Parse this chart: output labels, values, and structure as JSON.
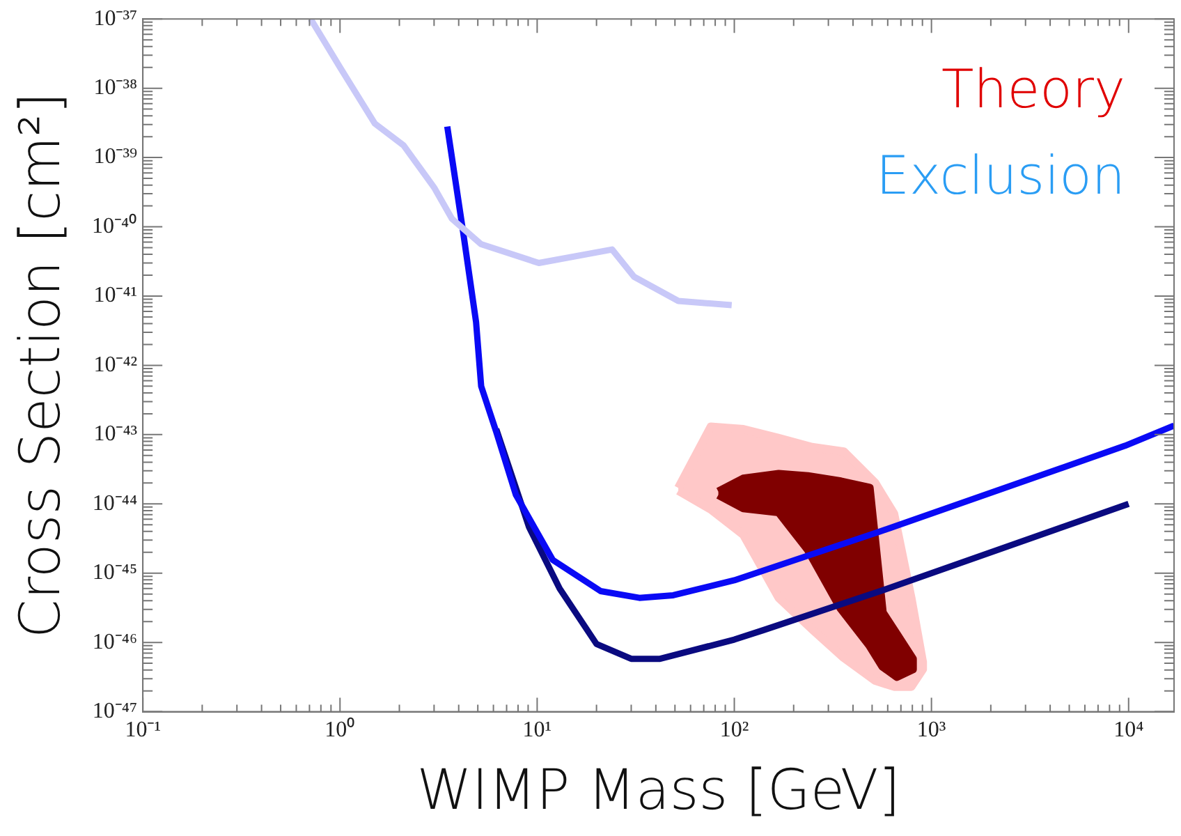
{
  "chart_data": {
    "type": "line",
    "xlabel": "WIMP Mass [GeV]",
    "ylabel": "Cross Section [cm²]",
    "log": "xy",
    "grid": false,
    "legend": false,
    "marker": "none",
    "line_style": "solid",
    "xlim": [
      0.1,
      17000
    ],
    "ylim": [
      1e-47,
      1e-37
    ],
    "xticks": [
      {
        "value": 0.1,
        "label": "10⁻¹"
      },
      {
        "value": 0.2,
        "label": null
      },
      {
        "value": 0.3,
        "label": null
      },
      {
        "value": 0.4,
        "label": null
      },
      {
        "value": 0.5,
        "label": null
      },
      {
        "value": 0.6,
        "label": null
      },
      {
        "value": 0.7,
        "label": null
      },
      {
        "value": 0.8,
        "label": null
      },
      {
        "value": 0.9,
        "label": null
      },
      {
        "value": 1,
        "label": "10⁰"
      },
      {
        "value": 2,
        "label": null
      },
      {
        "value": 3,
        "label": null
      },
      {
        "value": 4,
        "label": null
      },
      {
        "value": 5,
        "label": null
      },
      {
        "value": 6,
        "label": null
      },
      {
        "value": 7,
        "label": null
      },
      {
        "value": 8,
        "label": null
      },
      {
        "value": 9,
        "label": null
      },
      {
        "value": 10,
        "label": "10¹"
      },
      {
        "value": 20,
        "label": null
      },
      {
        "value": 30,
        "label": null
      },
      {
        "value": 40,
        "label": null
      },
      {
        "value": 50,
        "label": null
      },
      {
        "value": 60,
        "label": null
      },
      {
        "value": 70,
        "label": null
      },
      {
        "value": 80,
        "label": null
      },
      {
        "value": 90,
        "label": null
      },
      {
        "value": 100,
        "label": "10²"
      },
      {
        "value": 200,
        "label": null
      },
      {
        "value": 300,
        "label": null
      },
      {
        "value": 400,
        "label": null
      },
      {
        "value": 500,
        "label": null
      },
      {
        "value": 600,
        "label": null
      },
      {
        "value": 700,
        "label": null
      },
      {
        "value": 800,
        "label": null
      },
      {
        "value": 900,
        "label": null
      },
      {
        "value": 1000,
        "label": "10³"
      },
      {
        "value": 2000,
        "label": null
      },
      {
        "value": 3000,
        "label": null
      },
      {
        "value": 4000,
        "label": null
      },
      {
        "value": 5000,
        "label": null
      },
      {
        "value": 6000,
        "label": null
      },
      {
        "value": 7000,
        "label": null
      },
      {
        "value": 8000,
        "label": null
      },
      {
        "value": 9000,
        "label": null
      },
      {
        "value": 10000,
        "label": "10⁴"
      }
    ],
    "yticks": [
      {
        "value": 1e-47,
        "label": "10⁻⁴⁷"
      },
      {
        "value": 2e-47,
        "label": null
      },
      {
        "value": 3e-47,
        "label": null
      },
      {
        "value": 4e-47,
        "label": null
      },
      {
        "value": 5e-47,
        "label": null
      },
      {
        "value": 6e-47,
        "label": null
      },
      {
        "value": 7e-47,
        "label": null
      },
      {
        "value": 8e-47,
        "label": null
      },
      {
        "value": 9e-47,
        "label": null
      },
      {
        "value": 1e-46,
        "label": "10⁻⁴⁶"
      },
      {
        "value": 2e-46,
        "label": null
      },
      {
        "value": 3e-46,
        "label": null
      },
      {
        "value": 4e-46,
        "label": null
      },
      {
        "value": 5e-46,
        "label": null
      },
      {
        "value": 6e-46,
        "label": null
      },
      {
        "value": 7e-46,
        "label": null
      },
      {
        "value": 8e-46,
        "label": null
      },
      {
        "value": 9e-46,
        "label": null
      },
      {
        "value": 1e-45,
        "label": "10⁻⁴⁵"
      },
      {
        "value": 2e-45,
        "label": null
      },
      {
        "value": 3e-45,
        "label": null
      },
      {
        "value": 4e-45,
        "label": null
      },
      {
        "value": 5e-45,
        "label": null
      },
      {
        "value": 6e-45,
        "label": null
      },
      {
        "value": 7e-45,
        "label": null
      },
      {
        "value": 8e-45,
        "label": null
      },
      {
        "value": 9e-45,
        "label": null
      },
      {
        "value": 1e-44,
        "label": "10⁻⁴⁴"
      },
      {
        "value": 2e-44,
        "label": null
      },
      {
        "value": 3e-44,
        "label": null
      },
      {
        "value": 4e-44,
        "label": null
      },
      {
        "value": 5e-44,
        "label": null
      },
      {
        "value": 6e-44,
        "label": null
      },
      {
        "value": 7e-44,
        "label": null
      },
      {
        "value": 8e-44,
        "label": null
      },
      {
        "value": 9e-44,
        "label": null
      },
      {
        "value": 1e-43,
        "label": "10⁻⁴³"
      },
      {
        "value": 2e-43,
        "label": null
      },
      {
        "value": 3e-43,
        "label": null
      },
      {
        "value": 4e-43,
        "label": null
      },
      {
        "value": 5e-43,
        "label": null
      },
      {
        "value": 6e-43,
        "label": null
      },
      {
        "value": 7e-43,
        "label": null
      },
      {
        "value": 8e-43,
        "label": null
      },
      {
        "value": 9e-43,
        "label": null
      },
      {
        "value": 1e-42,
        "label": "10⁻⁴²"
      },
      {
        "value": 2e-42,
        "label": null
      },
      {
        "value": 3e-42,
        "label": null
      },
      {
        "value": 4e-42,
        "label": null
      },
      {
        "value": 5e-42,
        "label": null
      },
      {
        "value": 6e-42,
        "label": null
      },
      {
        "value": 7e-42,
        "label": null
      },
      {
        "value": 8e-42,
        "label": null
      },
      {
        "value": 9e-42,
        "label": null
      },
      {
        "value": 1e-41,
        "label": "10⁻⁴¹"
      },
      {
        "value": 2e-41,
        "label": null
      },
      {
        "value": 3e-41,
        "label": null
      },
      {
        "value": 4e-41,
        "label": null
      },
      {
        "value": 5e-41,
        "label": null
      },
      {
        "value": 6e-41,
        "label": null
      },
      {
        "value": 7e-41,
        "label": null
      },
      {
        "value": 8e-41,
        "label": null
      },
      {
        "value": 9e-41,
        "label": null
      },
      {
        "value": 1e-40,
        "label": "10⁻⁴⁰"
      },
      {
        "value": 2e-40,
        "label": null
      },
      {
        "value": 3e-40,
        "label": null
      },
      {
        "value": 4e-40,
        "label": null
      },
      {
        "value": 5e-40,
        "label": null
      },
      {
        "value": 6e-40,
        "label": null
      },
      {
        "value": 7e-40,
        "label": null
      },
      {
        "value": 8e-40,
        "label": null
      },
      {
        "value": 9e-40,
        "label": null
      },
      {
        "value": 1e-39,
        "label": "10⁻³⁹"
      },
      {
        "value": 2e-39,
        "label": null
      },
      {
        "value": 3e-39,
        "label": null
      },
      {
        "value": 4e-39,
        "label": null
      },
      {
        "value": 5e-39,
        "label": null
      },
      {
        "value": 6e-39,
        "label": null
      },
      {
        "value": 7e-39,
        "label": null
      },
      {
        "value": 8e-39,
        "label": null
      },
      {
        "value": 9e-39,
        "label": null
      },
      {
        "value": 1e-38,
        "label": "10⁻³⁸"
      },
      {
        "value": 2e-38,
        "label": null
      },
      {
        "value": 3e-38,
        "label": null
      },
      {
        "value": 4e-38,
        "label": null
      },
      {
        "value": 5e-38,
        "label": null
      },
      {
        "value": 6e-38,
        "label": null
      },
      {
        "value": 7e-38,
        "label": null
      },
      {
        "value": 8e-38,
        "label": null
      },
      {
        "value": 9e-38,
        "label": null
      },
      {
        "value": 1e-37,
        "label": "10⁻³⁷"
      }
    ],
    "annotations": [
      "Theory",
      "Exclusion"
    ],
    "series": [
      {
        "color": "#c8c8f8",
        "x": [
          0.71,
          1.0,
          1.5,
          2.1,
          3.0,
          3.7,
          5.2,
          10.2,
          24,
          31,
          52,
          97
        ],
        "values": [
          1e-37,
          2e-38,
          3.1e-39,
          1.5e-39,
          3.7e-40,
          1.3e-40,
          5.6e-41,
          3e-41,
          4.7e-41,
          1.9e-41,
          8.5e-42,
          7.4e-42
        ]
      },
      {
        "type": "area",
        "color": "#ffc8c8",
        "x": [
          52,
          76,
          111,
          168,
          248,
          359,
          519,
          646,
          790,
          904,
          904,
          790,
          646,
          519,
          359,
          248,
          168,
          111,
          76,
          52
        ],
        "values": [
          1.7e-44,
          1.3e-43,
          1.2e-43,
          8.9e-44,
          6.6e-44,
          5.7e-44,
          2e-44,
          7.2e-45,
          4.4e-46,
          5.2e-47,
          4.1e-47,
          2.3e-47,
          2.3e-47,
          2.8e-47,
          6e-47,
          1.55e-46,
          4.4e-46,
          3.6e-45,
          8.3e-45,
          1.55e-44
        ]
      },
      {
        "type": "area",
        "color": "#800000",
        "x": [
          83,
          111,
          168,
          236,
          347,
          485,
          565,
          668,
          803,
          803,
          668,
          565,
          485,
          347,
          236,
          168,
          111,
          83
        ],
        "values": [
          1.5e-44,
          2.3e-44,
          2.7e-44,
          2.5e-44,
          2.1e-44,
          1.7e-44,
          2.7e-46,
          1.3e-46,
          5.8e-47,
          4.1e-47,
          3.2e-47,
          4.5e-47,
          9.1e-47,
          3.1e-46,
          2.2e-45,
          7.6e-45,
          8.7e-45,
          1.35e-44
        ]
      },
      {
        "color": "#0a0af5",
        "x": [
          3.5,
          4.2,
          4.9,
          5.2,
          6.2,
          7.8,
          12,
          21,
          33,
          49,
          100,
          550,
          9600,
          17000
        ],
        "values": [
          2.8e-39,
          8.9e-41,
          4.2e-42,
          5e-43,
          1.1e-43,
          1.35e-44,
          1.55e-45,
          5.5e-46,
          4.4e-46,
          4.8e-46,
          7.9e-46,
          4e-45,
          6.9e-44,
          1.35e-43
        ]
      },
      {
        "color": "#0a0a80",
        "x": [
          6.2,
          9.1,
          13,
          20,
          30,
          42,
          100,
          140,
          550,
          10000
        ],
        "values": [
          1.2e-43,
          4.6e-45,
          6e-46,
          9.5e-47,
          5.8e-47,
          5.8e-47,
          1.1e-46,
          1.5e-46,
          5.5e-46,
          1e-44
        ]
      }
    ]
  }
}
